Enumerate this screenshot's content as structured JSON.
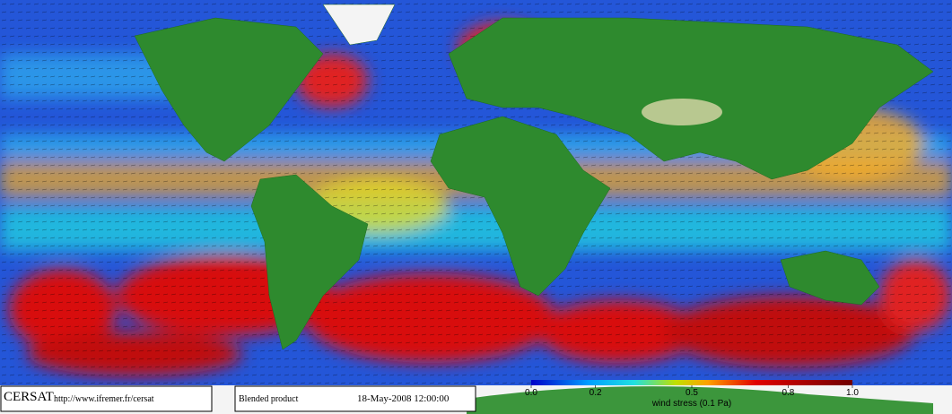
{
  "map": {
    "footer": {
      "logo": "CERSAT",
      "url": "http://www.ifremer.fr/cersat",
      "product": "Blended product",
      "date": "18-May-2008 12:00:00"
    },
    "colorbar": {
      "label": "wind stress (0.1 Pa)",
      "lim": [
        0,
        1
      ],
      "ticks": [
        {
          "value": 0,
          "label": "0.0"
        },
        0.2,
        0.5,
        0.8,
        {
          "value": 1,
          "label": "1.0"
        }
      ]
    }
  }
}
